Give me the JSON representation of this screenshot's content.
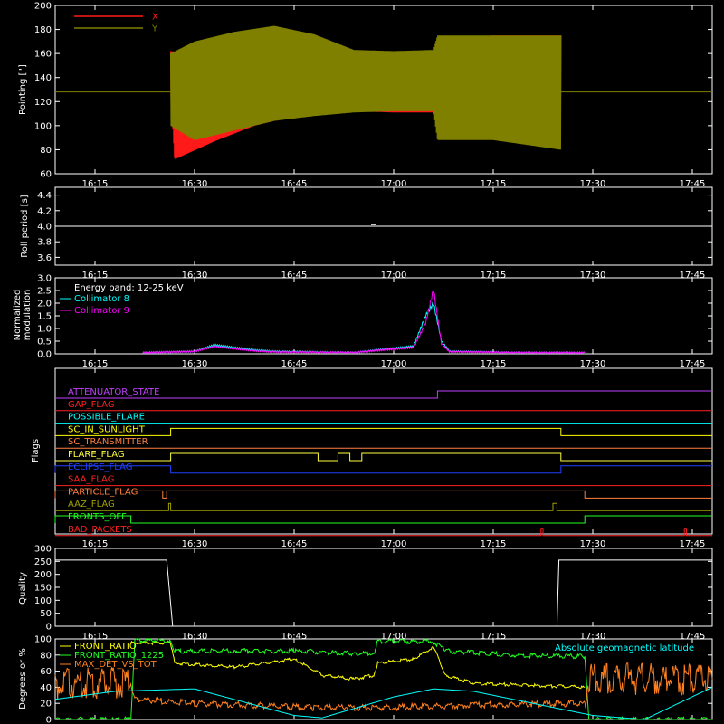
{
  "time_ticks": [
    "16:15",
    "16:30",
    "16:45",
    "17:00",
    "17:15",
    "17:30",
    "17:45"
  ],
  "chart_data": [
    {
      "type": "line",
      "ylabel": "Pointing [\"]",
      "ylim": [
        60,
        200
      ],
      "yticks": [
        "200",
        "180",
        "160",
        "140",
        "120",
        "100",
        "80",
        "60"
      ],
      "legend": [
        {
          "name": "X",
          "color": "#ff1a1a"
        },
        {
          "name": "Y",
          "color": "#808000"
        }
      ],
      "series": [
        {
          "name": "X",
          "color": "#ff1a1a",
          "upper_envelope": [
            [
              16.44,
              162
            ],
            [
              16.5,
              160
            ],
            [
              16.6,
              163
            ],
            [
              16.75,
              155
            ],
            [
              16.9,
              150
            ],
            [
              17.0,
              153
            ],
            [
              17.1,
              158
            ],
            [
              17.11,
              172
            ],
            [
              17.25,
              175
            ],
            [
              17.42,
              175
            ]
          ],
          "lower_envelope": [
            [
              16.44,
              128
            ],
            [
              16.45,
              72
            ],
            [
              16.55,
              87
            ],
            [
              16.65,
              100
            ],
            [
              16.75,
              108
            ],
            [
              16.9,
              112
            ],
            [
              17.0,
              111
            ],
            [
              17.1,
              111
            ],
            [
              17.11,
              115
            ],
            [
              17.25,
              115
            ],
            [
              17.42,
              115
            ]
          ]
        },
        {
          "name": "Y",
          "color": "#808000",
          "upper_envelope": [
            [
              16.44,
              160
            ],
            [
              16.5,
              170
            ],
            [
              16.6,
              178
            ],
            [
              16.7,
              183
            ],
            [
              16.8,
              176
            ],
            [
              16.9,
              163
            ],
            [
              17.0,
              162
            ],
            [
              17.1,
              163
            ],
            [
              17.11,
              175
            ],
            [
              17.25,
              175
            ],
            [
              17.42,
              175
            ]
          ],
          "lower_envelope": [
            [
              16.44,
              100
            ],
            [
              16.5,
              88
            ],
            [
              16.6,
              96
            ],
            [
              16.7,
              104
            ],
            [
              16.8,
              108
            ],
            [
              16.9,
              111
            ],
            [
              17.0,
              112
            ],
            [
              17.1,
              112
            ],
            [
              17.11,
              88
            ],
            [
              17.25,
              88
            ],
            [
              17.42,
              80
            ]
          ]
        },
        {
          "name": "baseline",
          "color": "#808000",
          "y": 128
        }
      ]
    },
    {
      "type": "line",
      "ylabel": "Roll period [s]",
      "ylim": [
        3.5,
        4.5
      ],
      "yticks": [
        "4.4",
        "4.2",
        "4.0",
        "3.8",
        "3.6"
      ],
      "series": [
        {
          "name": "roll",
          "color": "#ffffff",
          "x": [
            16.15,
            17.8
          ],
          "y": [
            4.0,
            4.0
          ],
          "blip": [
            16.95,
            4.02
          ]
        }
      ]
    },
    {
      "type": "line",
      "ylabel": "Normalized modulation",
      "ylim": [
        0,
        3
      ],
      "yticks": [
        "3.0",
        "2.5",
        "2.0",
        "1.5",
        "1.0",
        "0.5",
        "0.0"
      ],
      "legend_title": "Energy band: 12-25 keV",
      "series": [
        {
          "name": "Collimator 8",
          "color": "#00ffff",
          "x": [
            16.37,
            16.5,
            16.55,
            16.65,
            16.7,
            16.9,
            17.05,
            17.08,
            17.1,
            17.12,
            17.14,
            17.3,
            17.48
          ],
          "y": [
            0.05,
            0.1,
            0.35,
            0.15,
            0.1,
            0.05,
            0.3,
            1.5,
            2.0,
            0.5,
            0.1,
            0.05,
            0.05
          ]
        },
        {
          "name": "Collimator 9",
          "color": "#ff00ff",
          "x": [
            16.37,
            16.5,
            16.55,
            16.65,
            16.7,
            16.9,
            17.05,
            17.08,
            17.1,
            17.12,
            17.14,
            17.3,
            17.48
          ],
          "y": [
            0.05,
            0.1,
            0.3,
            0.12,
            0.08,
            0.05,
            0.25,
            1.2,
            2.55,
            0.4,
            0.08,
            0.05,
            0.05
          ]
        }
      ]
    },
    {
      "type": "line",
      "ylabel": "Flags",
      "flags": [
        {
          "label": "ATTENUATOR_STATE",
          "color": "#c040ff",
          "high": [
            [
              17.11,
              17.8
            ]
          ]
        },
        {
          "label": "GAP_FLAG",
          "color": "#ff2020",
          "high": []
        },
        {
          "label": "POSSIBLE_FLARE",
          "color": "#00ffff",
          "high": []
        },
        {
          "label": "SC_IN_SUNLIGHT",
          "color": "#ffff00",
          "high": [
            [
              16.44,
              17.42
            ]
          ]
        },
        {
          "label": "SC_TRANSMITTER",
          "color": "#ff8040",
          "high": []
        },
        {
          "label": "FLARE_FLAG",
          "color": "#ffff40",
          "high": [
            [
              16.44,
              16.81
            ],
            [
              16.86,
              16.89
            ],
            [
              16.92,
              17.42
            ]
          ]
        },
        {
          "label": "ECLIPSE_FLAG",
          "color": "#2040ff",
          "high": [
            [
              16.15,
              16.44
            ],
            [
              17.42,
              17.8
            ]
          ]
        },
        {
          "label": "SAA_FLAG",
          "color": "#ff2020",
          "high": []
        },
        {
          "label": "PARTICLE_FLAG",
          "color": "#ff8040",
          "high": [
            [
              16.15,
              16.42
            ],
            [
              16.43,
              17.48
            ]
          ]
        },
        {
          "label": "AAZ_FLAG",
          "color": "#a0a000",
          "high": [
            [
              16.435,
              16.44
            ],
            [
              17.4,
              17.41
            ]
          ]
        },
        {
          "label": "FRONTS_OFF",
          "color": "#20ff20",
          "high": [
            [
              16.15,
              16.34
            ],
            [
              17.48,
              17.8
            ]
          ]
        },
        {
          "label": "BAD_PACKETS",
          "color": "#ff2020",
          "high": [
            [
              17.37,
              17.375
            ],
            [
              17.73,
              17.735
            ]
          ]
        }
      ]
    },
    {
      "type": "line",
      "ylabel": "Quality",
      "ylim": [
        0,
        300
      ],
      "yticks": [
        "300",
        "250",
        "200",
        "150",
        "100",
        "50",
        "0"
      ],
      "series": [
        {
          "name": "quality",
          "color": "#ffffff",
          "x": [
            16.15,
            16.43,
            16.445,
            17.41,
            17.415,
            17.8
          ],
          "y": [
            255,
            255,
            0,
            0,
            255,
            255
          ]
        }
      ]
    },
    {
      "type": "line",
      "ylabel": "Degrees or %",
      "ylim": [
        0,
        100
      ],
      "yticks": [
        "100",
        "80",
        "60",
        "40",
        "20",
        "0"
      ],
      "legend": [
        {
          "name": "FRONT_RATIO",
          "color": "#ffff00"
        },
        {
          "name": "FRONT_RATIO_1225",
          "color": "#20ff20"
        },
        {
          "name": "MAX_DET_VS_TOT",
          "color": "#ff8020"
        }
      ],
      "annotation": {
        "text": "Absolute geomagnetic latitude",
        "color": "#00ffff"
      },
      "series": [
        {
          "name": "FRONT_RATIO",
          "color": "#ffff00",
          "x": [
            16.34,
            16.35,
            16.44,
            16.45,
            16.6,
            16.75,
            16.82,
            16.9,
            16.95,
            16.96,
            17.05,
            17.1,
            17.13,
            17.2,
            17.48
          ],
          "y": [
            95,
            95,
            95,
            70,
            65,
            75,
            55,
            50,
            55,
            70,
            75,
            90,
            55,
            45,
            40
          ]
        },
        {
          "name": "FRONT_RATIO_1225",
          "color": "#20ff20",
          "x": [
            16.15,
            16.34,
            16.35,
            16.44,
            16.45,
            16.6,
            16.75,
            16.9,
            16.95,
            16.96,
            17.1,
            17.13,
            17.3,
            17.48,
            17.49,
            17.8
          ],
          "y": [
            0,
            0,
            98,
            98,
            85,
            85,
            85,
            82,
            82,
            97,
            97,
            85,
            80,
            78,
            0,
            0
          ]
        },
        {
          "name": "MAX_DET_VS_TOT",
          "color": "#ff8020",
          "x": [
            16.15,
            16.34,
            16.35,
            16.5,
            16.8,
            17.0,
            17.2,
            17.48,
            17.49,
            17.8
          ],
          "y": [
            45,
            45,
            25,
            20,
            15,
            15,
            18,
            20,
            50,
            50
          ]
        },
        {
          "name": "Absolute geomagnetic latitude",
          "color": "#00ffff",
          "x": [
            16.15,
            16.3,
            16.5,
            16.75,
            16.82,
            17.0,
            17.1,
            17.2,
            17.35,
            17.5,
            17.63,
            17.8
          ],
          "y": [
            25,
            35,
            38,
            5,
            2,
            28,
            38,
            35,
            20,
            5,
            0,
            40
          ]
        }
      ]
    }
  ]
}
